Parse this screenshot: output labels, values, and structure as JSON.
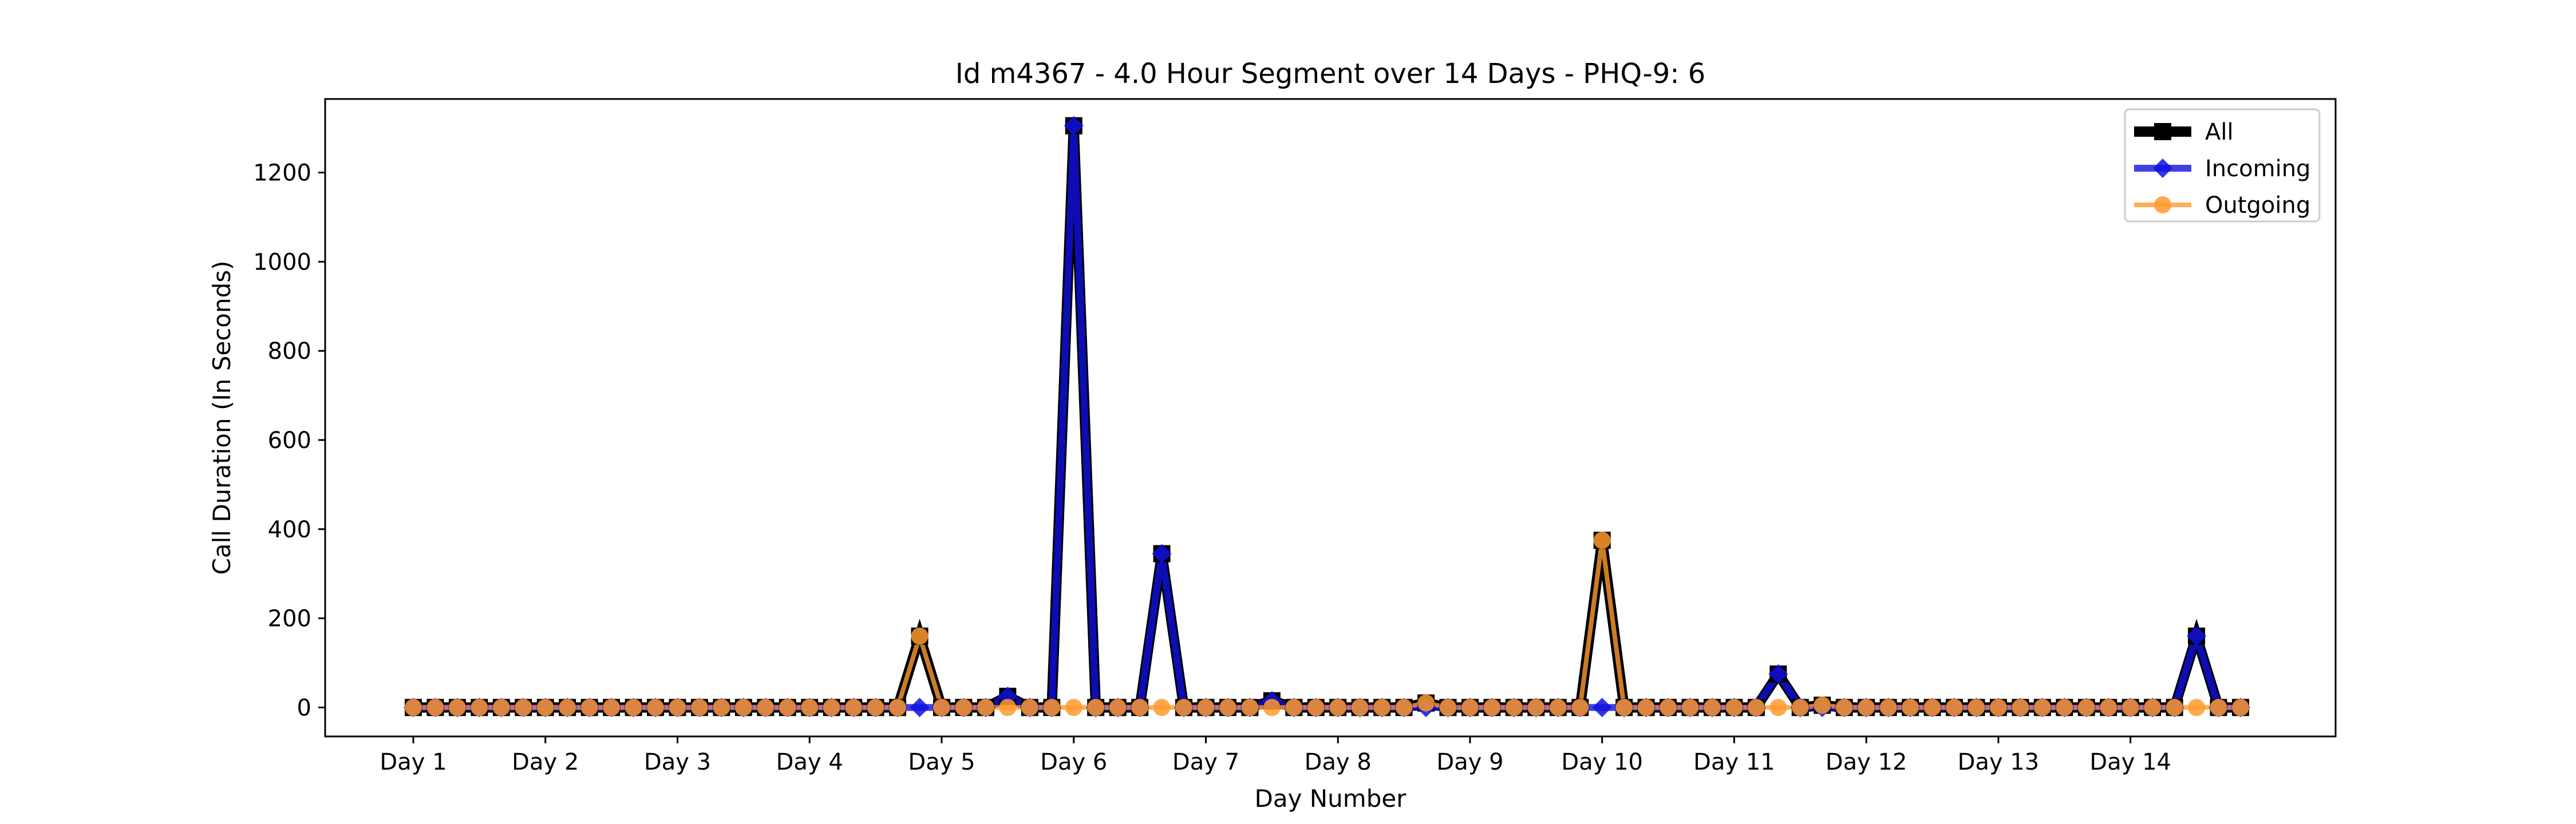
{
  "chart_data": {
    "type": "line",
    "title": "Id m4367 - 4.0 Hour Segment over 14 Days - PHQ-9: 6",
    "xlabel": "Day Number",
    "ylabel": "Call Duration (In Seconds)",
    "ylim": [
      -65,
      1365
    ],
    "yticks": [
      0,
      200,
      400,
      600,
      800,
      1000,
      1200
    ],
    "xtick_labels": [
      "Day 1",
      "Day 2",
      "Day 3",
      "Day 4",
      "Day 5",
      "Day 6",
      "Day 7",
      "Day 8",
      "Day 9",
      "Day 10",
      "Day 11",
      "Day 12",
      "Day 13",
      "Day 14"
    ],
    "points_per_day": 6,
    "grid": false,
    "legend_position": "top-right",
    "series": [
      {
        "name": "All",
        "color": "#000000",
        "marker": "square",
        "values": [
          0,
          0,
          0,
          0,
          0,
          0,
          0,
          0,
          0,
          0,
          0,
          0,
          0,
          0,
          0,
          0,
          0,
          0,
          0,
          0,
          0,
          0,
          0,
          160,
          0,
          0,
          0,
          25,
          0,
          0,
          1305,
          0,
          0,
          0,
          345,
          0,
          0,
          0,
          0,
          15,
          0,
          0,
          0,
          0,
          0,
          0,
          10,
          0,
          0,
          0,
          0,
          0,
          0,
          0,
          375,
          0,
          0,
          0,
          0,
          0,
          0,
          0,
          75,
          0,
          5,
          0,
          0,
          0,
          0,
          0,
          0,
          0,
          0,
          0,
          0,
          0,
          0,
          0,
          0,
          0,
          0,
          160,
          0,
          0
        ]
      },
      {
        "name": "Incoming",
        "color": "#1010e0",
        "marker": "diamond",
        "values": [
          0,
          0,
          0,
          0,
          0,
          0,
          0,
          0,
          0,
          0,
          0,
          0,
          0,
          0,
          0,
          0,
          0,
          0,
          0,
          0,
          0,
          0,
          0,
          0,
          0,
          0,
          0,
          25,
          0,
          0,
          1305,
          0,
          0,
          0,
          345,
          0,
          0,
          0,
          0,
          15,
          0,
          0,
          0,
          0,
          0,
          0,
          0,
          0,
          0,
          0,
          0,
          0,
          0,
          0,
          0,
          0,
          0,
          0,
          0,
          0,
          0,
          0,
          75,
          0,
          0,
          0,
          0,
          0,
          0,
          0,
          0,
          0,
          0,
          0,
          0,
          0,
          0,
          0,
          0,
          0,
          0,
          160,
          0,
          0
        ]
      },
      {
        "name": "Outgoing",
        "color": "#ff9a2e",
        "marker": "circle",
        "values": [
          0,
          0,
          0,
          0,
          0,
          0,
          0,
          0,
          0,
          0,
          0,
          0,
          0,
          0,
          0,
          0,
          0,
          0,
          0,
          0,
          0,
          0,
          0,
          160,
          0,
          0,
          0,
          0,
          0,
          0,
          0,
          0,
          0,
          0,
          0,
          0,
          0,
          0,
          0,
          0,
          0,
          0,
          0,
          0,
          0,
          0,
          10,
          0,
          0,
          0,
          0,
          0,
          0,
          0,
          375,
          0,
          0,
          0,
          0,
          0,
          0,
          0,
          0,
          0,
          5,
          0,
          0,
          0,
          0,
          0,
          0,
          0,
          0,
          0,
          0,
          0,
          0,
          0,
          0,
          0,
          0,
          0,
          0,
          0
        ]
      }
    ]
  }
}
